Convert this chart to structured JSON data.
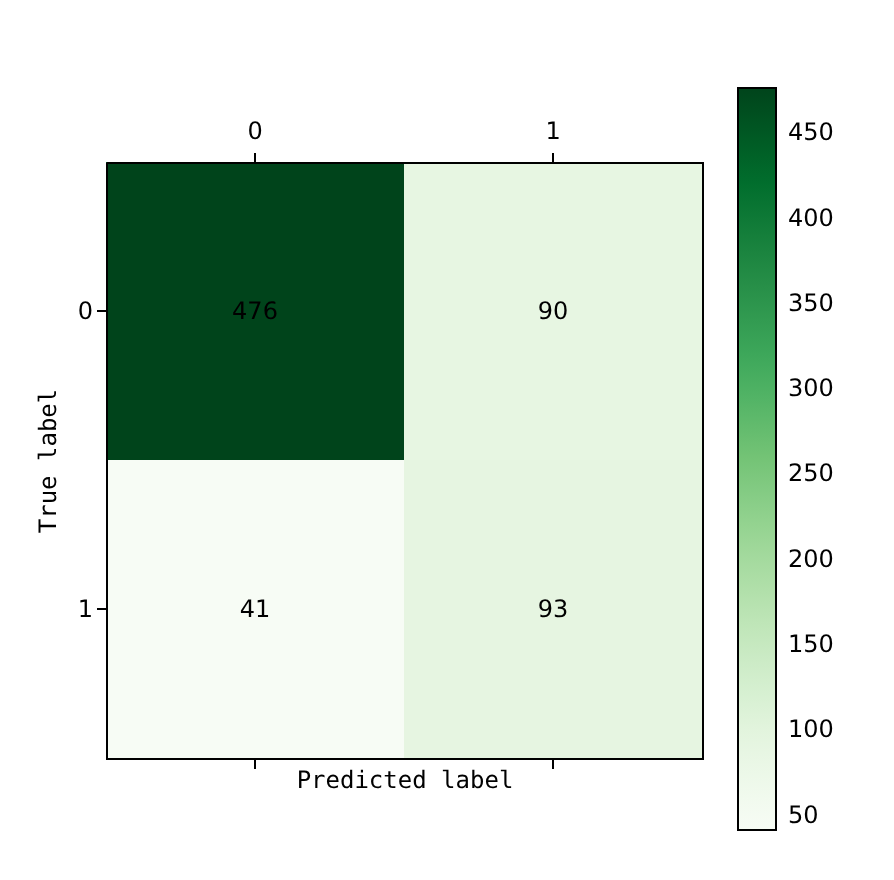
{
  "chart_data": {
    "type": "heatmap",
    "xlabel": "Predicted label",
    "ylabel": "True label",
    "categories": [
      "0",
      "1"
    ],
    "y_categories": [
      "0",
      "1"
    ],
    "cells": [
      [
        476,
        90
      ],
      [
        41,
        93
      ]
    ],
    "clim": [
      41,
      476
    ],
    "cticks": [
      50,
      100,
      150,
      200,
      250,
      300,
      350,
      400,
      450
    ],
    "data_labels": true
  }
}
